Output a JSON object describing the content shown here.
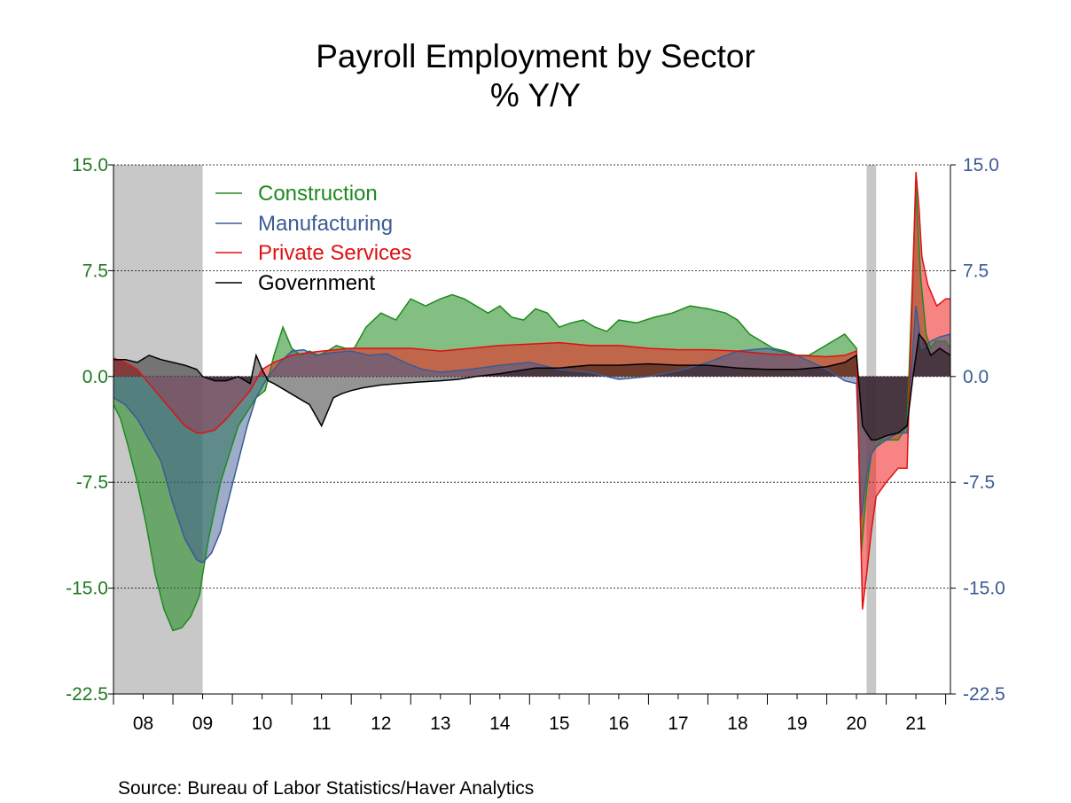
{
  "chart_data": {
    "type": "area",
    "title": "Payroll Employment by Sector",
    "subtitle": "% Y/Y",
    "source": "Source:  Bureau of Labor Statistics/Haver Analytics",
    "xlabel": "",
    "ylabel": "",
    "ylim": [
      -22.5,
      15.0
    ],
    "xlim": [
      2007.5,
      2021.58
    ],
    "y_ticks_left": [
      "15.0",
      "7.5",
      "0.0",
      "-7.5",
      "-15.0",
      "-22.5"
    ],
    "y_ticks_right": [
      "15.0",
      "7.5",
      "0.0",
      "-7.5",
      "-15.0",
      "-22.5"
    ],
    "y_tick_values": [
      15.0,
      7.5,
      0.0,
      -7.5,
      -15.0,
      -22.5
    ],
    "x_tick_labels": [
      "08",
      "09",
      "10",
      "11",
      "12",
      "13",
      "14",
      "15",
      "16",
      "17",
      "18",
      "19",
      "20",
      "21"
    ],
    "recessions": [
      [
        2007.5,
        2009.0
      ],
      [
        2020.17,
        2020.33
      ]
    ],
    "grid": "horizontal dotted",
    "legend_position": "top-left",
    "colors": {
      "construction": "#1e8a1e",
      "manufacturing": "#3c5a94",
      "private_services": "#e01010",
      "government": "#000000",
      "left_axis": "#1e7a1e",
      "right_axis": "#3c5a94",
      "recession": "#c8c8c8"
    },
    "series": [
      {
        "name": "Construction",
        "key": "construction",
        "x": [
          2007.5,
          2007.62,
          2007.75,
          2007.9,
          2008.05,
          2008.2,
          2008.35,
          2008.5,
          2008.65,
          2008.8,
          2008.95,
          2009.0,
          2009.1,
          2009.2,
          2009.3,
          2009.45,
          2009.6,
          2009.75,
          2009.9,
          2010.05,
          2010.2,
          2010.35,
          2010.5,
          2010.65,
          2010.8,
          2010.95,
          2011.1,
          2011.25,
          2011.4,
          2011.55,
          2011.75,
          2012.0,
          2012.25,
          2012.5,
          2012.75,
          2013.0,
          2013.2,
          2013.4,
          2013.6,
          2013.8,
          2014.0,
          2014.2,
          2014.4,
          2014.6,
          2014.8,
          2015.0,
          2015.2,
          2015.4,
          2015.6,
          2015.8,
          2016.0,
          2016.3,
          2016.6,
          2016.9,
          2017.2,
          2017.5,
          2017.8,
          2018.0,
          2018.2,
          2018.4,
          2018.6,
          2018.8,
          2019.0,
          2019.2,
          2019.4,
          2019.6,
          2019.8,
          2020.0,
          2020.08,
          2020.17,
          2020.25,
          2020.33,
          2020.42,
          2020.55,
          2020.7,
          2020.85,
          2021.0,
          2021.08,
          2021.17,
          2021.25,
          2021.33,
          2021.5,
          2021.58
        ],
        "values": [
          -2.0,
          -3.0,
          -5.0,
          -7.5,
          -10.5,
          -14.0,
          -16.5,
          -18.0,
          -17.8,
          -17.0,
          -15.5,
          -14.0,
          -11.5,
          -9.5,
          -7.5,
          -5.5,
          -3.5,
          -2.5,
          -1.5,
          -1.0,
          1.5,
          3.5,
          2.0,
          1.5,
          1.8,
          1.5,
          1.8,
          2.2,
          2.0,
          2.0,
          3.5,
          4.5,
          4.0,
          5.5,
          5.0,
          5.5,
          5.8,
          5.5,
          5.0,
          4.5,
          5.0,
          4.2,
          4.0,
          4.8,
          4.5,
          3.5,
          3.8,
          4.0,
          3.5,
          3.2,
          4.0,
          3.8,
          4.2,
          4.5,
          5.0,
          4.8,
          4.5,
          4.0,
          3.0,
          2.5,
          2.0,
          1.8,
          1.5,
          1.5,
          2.0,
          2.5,
          3.0,
          2.0,
          -12.5,
          -8.0,
          -5.5,
          -5.0,
          -4.5,
          -4.5,
          -4.5,
          -3.5,
          13.5,
          7.0,
          3.0,
          2.0,
          2.5,
          2.5,
          2.0
        ]
      },
      {
        "name": "Manufacturing",
        "key": "manufacturing",
        "x": [
          2007.5,
          2007.7,
          2007.9,
          2008.1,
          2008.3,
          2008.5,
          2008.7,
          2008.9,
          2009.0,
          2009.15,
          2009.3,
          2009.45,
          2009.6,
          2009.75,
          2009.9,
          2010.1,
          2010.3,
          2010.5,
          2010.7,
          2010.9,
          2011.2,
          2011.5,
          2011.8,
          2012.1,
          2012.4,
          2012.7,
          2013.0,
          2013.5,
          2014.0,
          2014.5,
          2015.0,
          2015.5,
          2016.0,
          2016.5,
          2017.0,
          2017.5,
          2018.0,
          2018.5,
          2019.0,
          2019.5,
          2019.8,
          2020.0,
          2020.08,
          2020.17,
          2020.25,
          2020.33,
          2020.5,
          2020.7,
          2020.85,
          2021.0,
          2021.1,
          2021.25,
          2021.4,
          2021.58
        ],
        "values": [
          -1.5,
          -2.0,
          -3.0,
          -4.5,
          -6.0,
          -9.0,
          -11.5,
          -13.0,
          -13.2,
          -12.5,
          -11.0,
          -8.5,
          -6.0,
          -3.5,
          -1.5,
          0.0,
          1.0,
          1.8,
          1.9,
          1.5,
          1.7,
          1.8,
          1.5,
          1.6,
          1.0,
          0.5,
          0.3,
          0.5,
          0.8,
          1.0,
          0.5,
          0.3,
          -0.2,
          0.0,
          0.4,
          1.0,
          1.8,
          2.0,
          1.5,
          0.5,
          -0.3,
          -0.5,
          -10.0,
          -7.0,
          -5.5,
          -5.0,
          -4.5,
          -4.0,
          -4.0,
          5.0,
          2.0,
          2.5,
          2.8,
          3.0
        ]
      },
      {
        "name": "Private Services",
        "key": "private_services",
        "x": [
          2007.5,
          2007.7,
          2007.9,
          2008.1,
          2008.3,
          2008.5,
          2008.7,
          2008.9,
          2009.0,
          2009.2,
          2009.4,
          2009.6,
          2009.8,
          2010.0,
          2010.2,
          2010.5,
          2010.8,
          2011.0,
          2011.5,
          2012.0,
          2012.5,
          2013.0,
          2013.5,
          2014.0,
          2014.5,
          2015.0,
          2015.5,
          2016.0,
          2016.5,
          2017.0,
          2017.5,
          2018.0,
          2018.5,
          2019.0,
          2019.5,
          2019.8,
          2020.0,
          2020.1,
          2020.17,
          2020.25,
          2020.33,
          2020.5,
          2020.7,
          2020.85,
          2021.0,
          2021.05,
          2021.1,
          2021.2,
          2021.35,
          2021.5,
          2021.58
        ],
        "values": [
          1.3,
          1.0,
          0.5,
          -0.5,
          -1.5,
          -2.5,
          -3.5,
          -4.0,
          -4.0,
          -3.8,
          -3.0,
          -2.0,
          -1.0,
          0.5,
          1.0,
          1.5,
          1.7,
          1.8,
          2.0,
          2.0,
          2.0,
          1.8,
          2.0,
          2.2,
          2.3,
          2.4,
          2.2,
          2.2,
          2.0,
          1.9,
          1.9,
          1.8,
          1.6,
          1.5,
          1.4,
          1.5,
          1.8,
          -16.5,
          -14.0,
          -11.0,
          -8.5,
          -7.5,
          -6.5,
          -6.5,
          14.5,
          12.0,
          8.5,
          6.5,
          5.0,
          5.5,
          5.5
        ]
      },
      {
        "name": "Government",
        "key": "government",
        "x": [
          2007.5,
          2007.7,
          2007.9,
          2008.1,
          2008.3,
          2008.5,
          2008.7,
          2008.9,
          2009.0,
          2009.2,
          2009.4,
          2009.6,
          2009.8,
          2009.9,
          2010.0,
          2010.1,
          2010.2,
          2010.4,
          2010.6,
          2010.8,
          2011.0,
          2011.2,
          2011.35,
          2011.5,
          2011.7,
          2012.0,
          2012.3,
          2012.6,
          2013.0,
          2013.3,
          2013.6,
          2014.0,
          2014.3,
          2014.6,
          2015.0,
          2015.5,
          2016.0,
          2016.5,
          2017.0,
          2017.5,
          2018.0,
          2018.5,
          2019.0,
          2019.5,
          2019.8,
          2020.0,
          2020.1,
          2020.17,
          2020.25,
          2020.33,
          2020.5,
          2020.7,
          2020.85,
          2020.95,
          2021.05,
          2021.15,
          2021.25,
          2021.4,
          2021.58
        ],
        "values": [
          1.2,
          1.2,
          1.0,
          1.5,
          1.2,
          1.0,
          0.8,
          0.5,
          0.0,
          -0.3,
          -0.3,
          0.0,
          -0.5,
          1.5,
          0.5,
          -0.3,
          -0.5,
          -1.0,
          -1.5,
          -2.0,
          -3.5,
          -1.5,
          -1.2,
          -1.0,
          -0.8,
          -0.6,
          -0.5,
          -0.4,
          -0.3,
          -0.2,
          0.0,
          0.2,
          0.4,
          0.6,
          0.6,
          0.8,
          0.8,
          0.9,
          0.8,
          0.8,
          0.6,
          0.5,
          0.5,
          0.7,
          1.0,
          1.5,
          -3.5,
          -4.0,
          -4.5,
          -4.5,
          -4.2,
          -4.0,
          -3.5,
          0.0,
          3.0,
          2.5,
          1.5,
          2.0,
          1.5
        ]
      }
    ]
  }
}
